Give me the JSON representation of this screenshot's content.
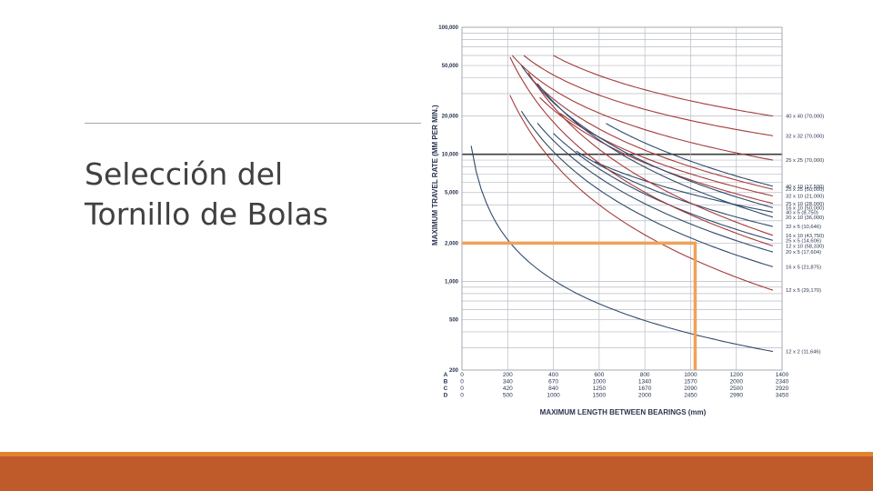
{
  "slide": {
    "title_line1": "Selección del",
    "title_line2": "Tornillo de Bolas"
  },
  "colors": {
    "title_text": "#404040",
    "divider": "#a6a6a6",
    "footer_thin": "#e0842b",
    "footer_band": "#bf5a2a",
    "navy_curve": "#2f4a6b",
    "red_curve": "#a53a3a",
    "highlight": "#eea25a",
    "grid": "#b8bcc4",
    "ten_thousand_line": "#3a3a3a"
  },
  "chart_data": {
    "type": "line",
    "ylabel": "MAXIMUM TRAVEL RATE (MM PER MIN.)",
    "xlabel": "MAXIMUM LENGTH BETWEEN BEARINGS (mm)",
    "y_scale": "log",
    "ylim": [
      200,
      100000
    ],
    "xlim": [
      0,
      1400
    ],
    "y_tick_labels": [
      "100,000",
      "50,000",
      "20,000",
      "10,000",
      "5,000",
      "2,000",
      "1,000",
      "500",
      "200"
    ],
    "y_tick_values": [
      100000,
      50000,
      20000,
      10000,
      5000,
      2000,
      1000,
      500,
      200
    ],
    "x_scale_rows": [
      {
        "label": "A",
        "values": [
          "0",
          "200",
          "400",
          "600",
          "800",
          "1000",
          "1200",
          "1400"
        ]
      },
      {
        "label": "B",
        "values": [
          "0",
          "340",
          "670",
          "1000",
          "1340",
          "1570",
          "2000",
          "2340"
        ]
      },
      {
        "label": "C",
        "values": [
          "0",
          "420",
          "840",
          "1250",
          "1670",
          "2090",
          "2500",
          "2920"
        ]
      },
      {
        "label": "D",
        "values": [
          "0",
          "500",
          "1000",
          "1500",
          "2000",
          "2450",
          "2990",
          "3450"
        ]
      }
    ],
    "series": [
      {
        "name": "40 x 40 (70,000)",
        "color": "red",
        "x": [
          400,
          1360
        ],
        "y": [
          60000,
          20000
        ]
      },
      {
        "name": "32 x 32 (70,000)",
        "color": "red",
        "x": [
          270,
          1360
        ],
        "y": [
          60000,
          14000
        ]
      },
      {
        "name": "25 x 25 (70,000)",
        "color": "red",
        "x": [
          220,
          1360
        ],
        "y": [
          60000,
          9000
        ]
      },
      {
        "name": "40 x 10 (17,500)",
        "color": "navy",
        "x": [
          630,
          1360
        ],
        "y": [
          17500,
          5600
        ]
      },
      {
        "name": "25 x 25 (50,000)",
        "color": "red",
        "x": [
          300,
          1360
        ],
        "y": [
          40000,
          5300
        ]
      },
      {
        "name": "32 x 10 (21,000)",
        "color": "red",
        "x": [
          430,
          1360
        ],
        "y": [
          21000,
          4700
        ]
      },
      {
        "name": "25 x 10 (28,000)",
        "color": "red",
        "x": [
          340,
          1360
        ],
        "y": [
          28000,
          4100
        ]
      },
      {
        "name": "16 x 10 (50,000)",
        "color": "navy",
        "x": [
          260,
          1360
        ],
        "y": [
          50000,
          3800
        ]
      },
      {
        "name": "40 x 5 (8,750)",
        "color": "navy",
        "x": [
          580,
          1360
        ],
        "y": [
          8750,
          3500
        ]
      },
      {
        "name": "20 x 10 (36,000)",
        "color": "navy",
        "x": [
          330,
          1360
        ],
        "y": [
          36000,
          3200
        ]
      },
      {
        "name": "32 x 5 (10,646)",
        "color": "navy",
        "x": [
          500,
          1360
        ],
        "y": [
          10600,
          2700
        ]
      },
      {
        "name": "16 x 10 (43,750)",
        "color": "red",
        "x": [
          290,
          1360
        ],
        "y": [
          43750,
          2300
        ]
      },
      {
        "name": "25 x 5 (14,606)",
        "color": "navy",
        "x": [
          400,
          1360
        ],
        "y": [
          14600,
          2100
        ]
      },
      {
        "name": "12 x 10 (58,330)",
        "color": "red",
        "x": [
          210,
          1360
        ],
        "y": [
          58330,
          1900
        ]
      },
      {
        "name": "20 x 5 (17,604)",
        "color": "navy",
        "x": [
          330,
          1360
        ],
        "y": [
          17600,
          1700
        ]
      },
      {
        "name": "16 x 5 (21,875)",
        "color": "navy",
        "x": [
          260,
          1360
        ],
        "y": [
          21875,
          1300
        ]
      },
      {
        "name": "12 x 5 (29,170)",
        "color": "red",
        "x": [
          210,
          1360
        ],
        "y": [
          29170,
          850
        ]
      },
      {
        "name": "12 x 2 (11,646)",
        "color": "navy",
        "x": [
          40,
          1360
        ],
        "y": [
          11646,
          280
        ]
      }
    ],
    "highlight": {
      "y_value": 2000,
      "x_value": 1020
    }
  }
}
